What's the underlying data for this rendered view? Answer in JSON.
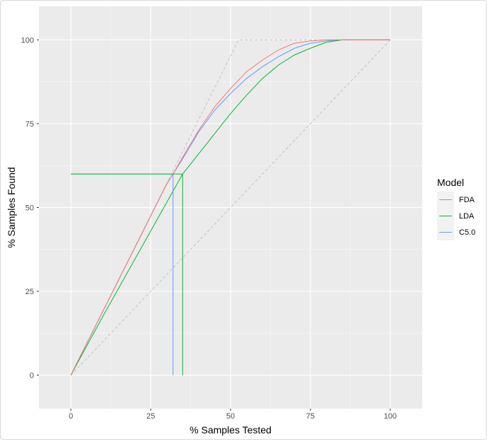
{
  "chart_data": {
    "type": "line",
    "xlabel": "% Samples Tested",
    "ylabel": "% Samples Found",
    "xlim": [
      -10,
      110
    ],
    "ylim": [
      -10,
      110
    ],
    "x_ticks": [
      "0",
      "25",
      "50",
      "75",
      "100"
    ],
    "y_ticks": [
      "0",
      "25",
      "50",
      "75",
      "100"
    ],
    "grid": true,
    "legend": {
      "title": "Model",
      "placement": "right",
      "entries": [
        "FDA",
        "LDA",
        "C5.0"
      ]
    },
    "series": [
      {
        "name": "FDA",
        "color": "#F8766D",
        "x": [
          0,
          10,
          20,
          30,
          32,
          35,
          40,
          45,
          50,
          55,
          60,
          65,
          70,
          75,
          80,
          85,
          100
        ],
        "y": [
          0,
          19,
          38,
          57,
          60,
          65,
          73,
          80,
          85.5,
          90.5,
          94,
          97,
          99,
          99.7,
          100,
          100,
          100
        ]
      },
      {
        "name": "LDA",
        "color": "#00BA38",
        "x": [
          0,
          10,
          20,
          30,
          35,
          40,
          45,
          50,
          55,
          60,
          65,
          70,
          75,
          80,
          85,
          100
        ],
        "y": [
          0,
          17.5,
          34.5,
          51.5,
          60,
          66,
          72,
          78,
          83.5,
          88.5,
          92.5,
          95.5,
          97.5,
          99.3,
          100,
          100
        ]
      },
      {
        "name": "C5.0",
        "color": "#619CFF",
        "x": [
          0,
          10,
          20,
          30,
          32,
          35,
          40,
          45,
          50,
          55,
          60,
          65,
          70,
          75,
          80,
          85,
          100
        ],
        "y": [
          0,
          19,
          38,
          57,
          60,
          64.5,
          72.5,
          79,
          84,
          88.5,
          92,
          95,
          97.5,
          99,
          99.7,
          100,
          100
        ]
      }
    ],
    "reference_lines": {
      "color": "#bdbdbd",
      "ideal": {
        "x": [
          0,
          52.5,
          100
        ],
        "y": [
          0,
          100,
          100
        ]
      },
      "random": {
        "x": [
          0,
          100
        ],
        "y": [
          0,
          100
        ]
      }
    },
    "cutoff_lines": [
      {
        "model": "C5.0",
        "color": "#619CFF",
        "x": 32,
        "y": 60
      },
      {
        "model": "LDA",
        "color": "#00BA38",
        "x": 35,
        "y": 60
      }
    ]
  }
}
